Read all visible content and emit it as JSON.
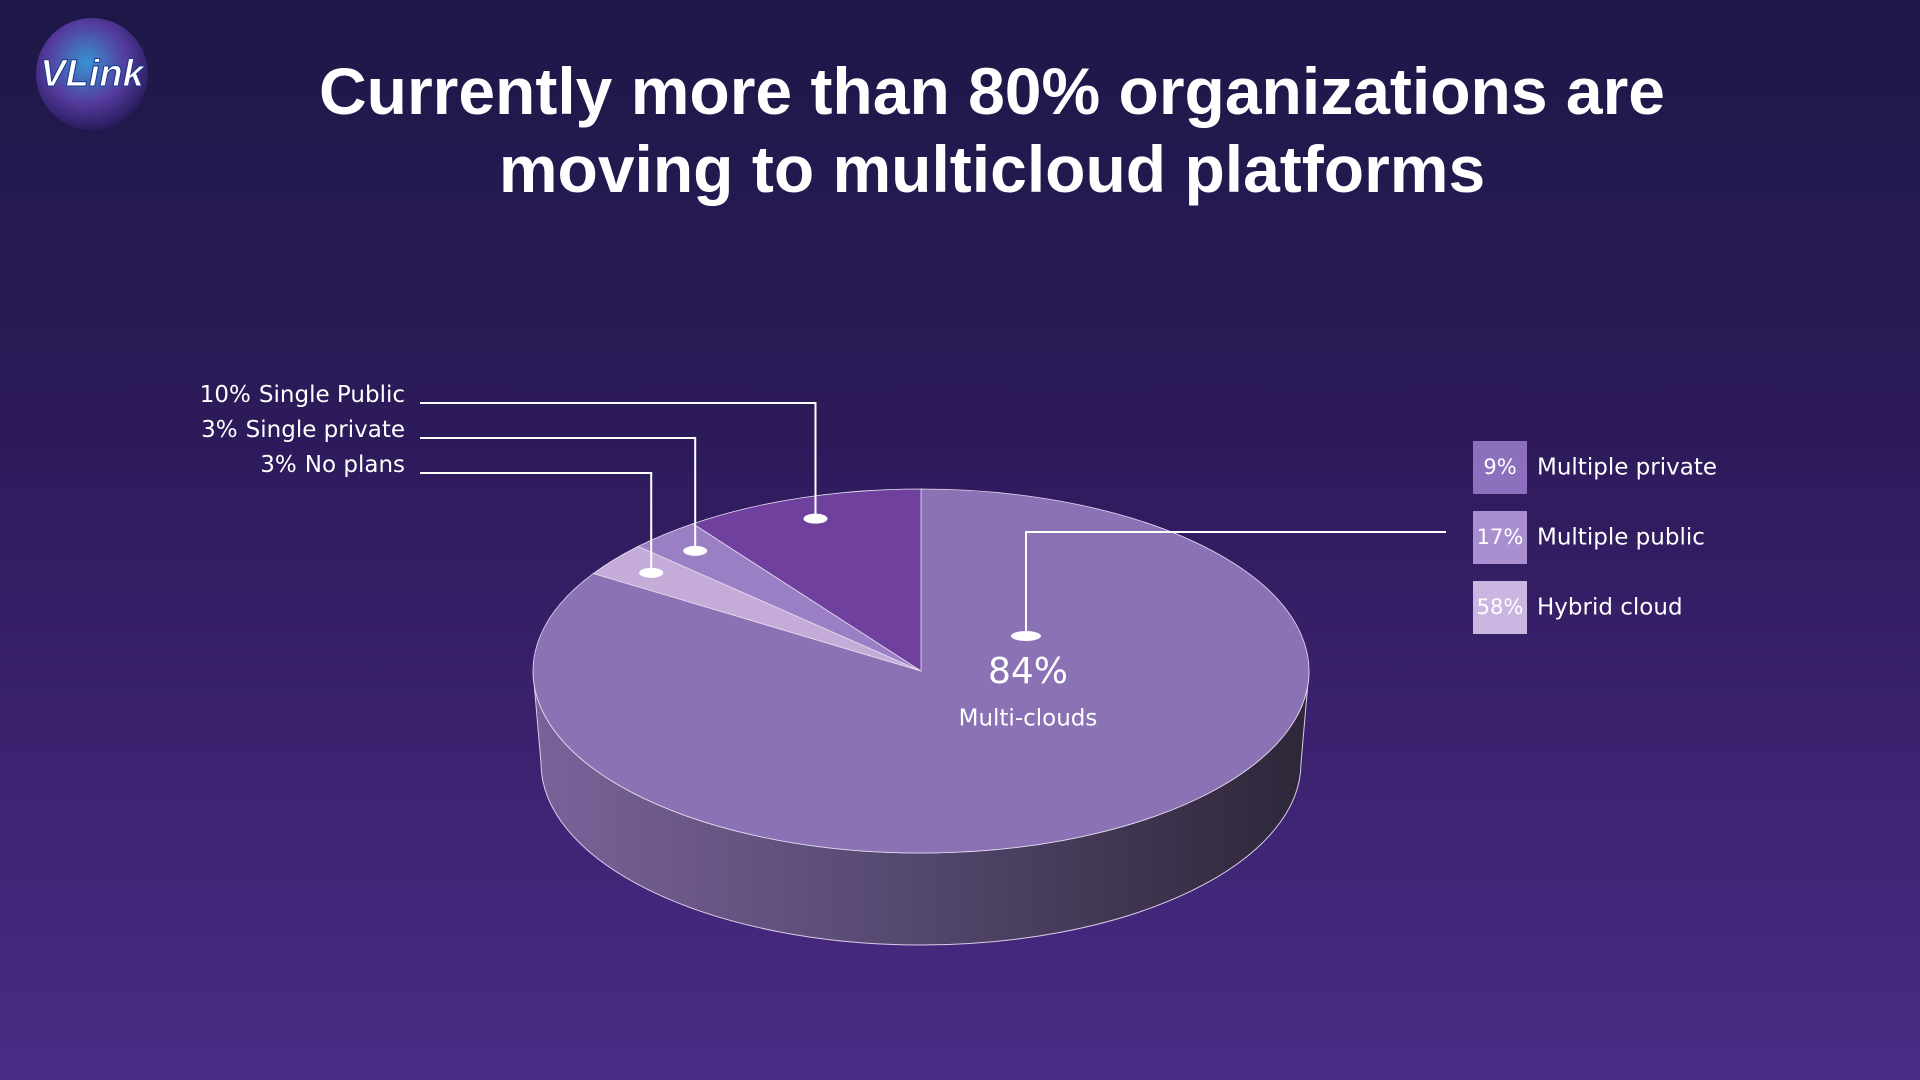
{
  "logo": "VLink",
  "chart_data": {
    "type": "pie",
    "title": "Currently more than 80% organizations are moving to multicloud platforms",
    "categories": [
      "Multi-clouds",
      "No plans",
      "Single private",
      "Single Public"
    ],
    "values": [
      84,
      3,
      3,
      10
    ],
    "value_labels": [
      "84%",
      "3%",
      "3%",
      "10%"
    ],
    "colors": [
      "#8b72b4",
      "#c5acd8",
      "#9a7fc4",
      "#6f409d"
    ],
    "breakdown": {
      "categories": [
        "Multiple private",
        "Multiple public",
        "Hybrid cloud"
      ],
      "values": [
        9,
        17,
        58
      ],
      "value_labels": [
        "9%",
        "17%",
        "58%"
      ],
      "colors": [
        "#8c6fbd",
        "#a98fd0",
        "#cbb6e1"
      ]
    }
  }
}
